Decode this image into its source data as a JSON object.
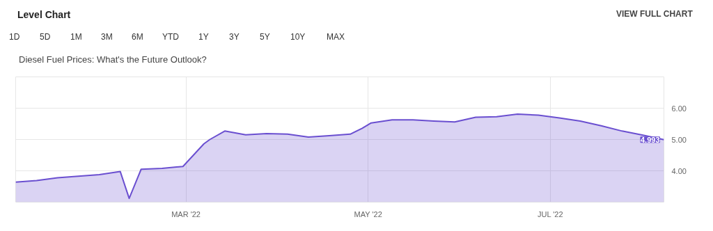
{
  "chart_data": {
    "type": "area",
    "title": "Level Chart",
    "subtitle": "Diesel Fuel Prices: What's the Future Outlook?",
    "annotations": [
      "VIEW FULL CHART",
      "1D",
      "5D",
      "1M",
      "3M",
      "6M",
      "YTD",
      "1Y",
      "3Y",
      "5Y",
      "10Y",
      "MAX"
    ],
    "x": [
      "2022-01-03",
      "2022-01-10",
      "2022-01-17",
      "2022-01-24",
      "2022-01-31",
      "2022-02-07",
      "2022-02-10",
      "2022-02-14",
      "2022-02-21",
      "2022-02-28",
      "2022-03-07",
      "2022-03-09",
      "2022-03-14",
      "2022-03-21",
      "2022-03-28",
      "2022-04-04",
      "2022-04-11",
      "2022-04-18",
      "2022-04-25",
      "2022-04-29",
      "2022-05-02",
      "2022-05-09",
      "2022-05-16",
      "2022-05-23",
      "2022-05-30",
      "2022-06-06",
      "2022-06-13",
      "2022-06-20",
      "2022-06-27",
      "2022-07-04",
      "2022-07-11",
      "2022-07-18",
      "2022-07-25",
      "2022-08-01",
      "2022-08-08"
    ],
    "series": [
      {
        "color": "#6a4fd0",
        "values": [
          3.64,
          3.69,
          3.78,
          3.83,
          3.88,
          3.98,
          3.12,
          4.05,
          4.08,
          4.14,
          4.86,
          5.0,
          5.27,
          5.15,
          5.19,
          5.17,
          5.08,
          5.12,
          5.17,
          5.36,
          5.53,
          5.63,
          5.63,
          5.59,
          5.56,
          5.71,
          5.73,
          5.81,
          5.78,
          5.69,
          5.59,
          5.44,
          5.27,
          5.14,
          4.993
        ],
        "value_labels": [
          null,
          null,
          null,
          null,
          null,
          null,
          null,
          null,
          null,
          null,
          null,
          null,
          null,
          null,
          null,
          null,
          null,
          null,
          null,
          null,
          null,
          null,
          null,
          null,
          null,
          null,
          null,
          null,
          null,
          null,
          null,
          null,
          null,
          null,
          "4.993"
        ]
      }
    ],
    "xlim": [
      "2022-01-03",
      "2022-08-08"
    ],
    "ylim": [
      3,
      7
    ],
    "xticks": [
      {
        "value": "2022-03-01",
        "label": "MAR '22"
      },
      {
        "value": "2022-05-01",
        "label": "MAY '22"
      },
      {
        "value": "2022-07-01",
        "label": "JUL '22"
      }
    ],
    "yticks": [
      {
        "value": 4,
        "label": "4.00"
      },
      {
        "value": 5,
        "label": "5.00"
      },
      {
        "value": 6,
        "label": "6.00"
      }
    ],
    "grid": true
  }
}
